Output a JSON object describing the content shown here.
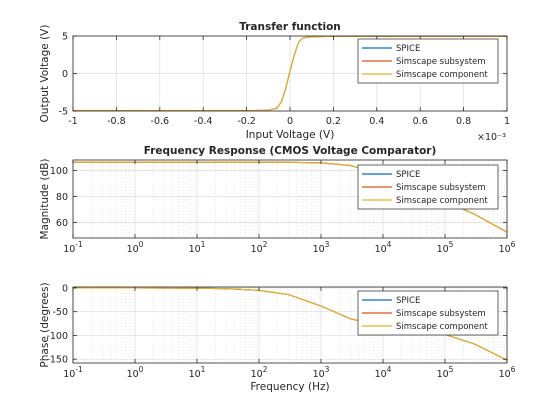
{
  "legend_labels": [
    "SPICE",
    "Simscape subsystem",
    "Simscape component"
  ],
  "colors": {
    "spice": "#0072BD",
    "subsystem": "#D95319",
    "component": "#EDB120",
    "grid": "#dcdcdc",
    "axis": "#262626"
  },
  "chart_data": [
    {
      "type": "line",
      "title": "Transfer function",
      "xlabel": "Input Voltage (V)",
      "ylabel": "Output Voltage (V)",
      "x_exponent_label": "×10⁻³",
      "xlim": [
        -1,
        1
      ],
      "ylim": [
        -5,
        5
      ],
      "xticks": [
        -1,
        -0.8,
        -0.6,
        -0.4,
        -0.2,
        0,
        0.2,
        0.4,
        0.6,
        0.8,
        1
      ],
      "xticklabels": [
        "-1",
        "-0.8",
        "-0.6",
        "-0.4",
        "-0.2",
        "0",
        "0.2",
        "0.4",
        "0.6",
        "0.8",
        "1"
      ],
      "yticks": [
        -5,
        0,
        5
      ],
      "yticklabels": [
        "-5",
        "0",
        "5"
      ],
      "xscale": "linear",
      "grid": true,
      "legend": "top-right",
      "series": [
        {
          "name": "SPICE",
          "x": [
            -1,
            -0.2,
            -0.1,
            -0.06,
            -0.04,
            -0.02,
            0,
            0.02,
            0.04,
            0.06,
            0.1,
            0.2,
            1
          ],
          "y": [
            -4.95,
            -4.95,
            -4.9,
            -4.6,
            -3.8,
            -2,
            0.3,
            2.5,
            4.2,
            4.75,
            4.9,
            4.95,
            4.95
          ]
        },
        {
          "name": "Simscape subsystem",
          "x": [
            -1,
            -0.2,
            -0.1,
            -0.06,
            -0.04,
            -0.02,
            0,
            0.02,
            0.04,
            0.06,
            0.1,
            0.2,
            1
          ],
          "y": [
            -4.95,
            -4.95,
            -4.9,
            -4.6,
            -3.8,
            -2,
            0.3,
            2.5,
            4.2,
            4.75,
            4.9,
            4.95,
            4.95
          ]
        },
        {
          "name": "Simscape component",
          "x": [
            -1,
            -0.2,
            -0.1,
            -0.06,
            -0.04,
            -0.02,
            0,
            0.02,
            0.04,
            0.06,
            0.1,
            0.2,
            1
          ],
          "y": [
            -4.95,
            -4.95,
            -4.9,
            -4.6,
            -3.8,
            -2,
            0.3,
            2.5,
            4.2,
            4.75,
            4.9,
            4.95,
            4.95
          ]
        }
      ]
    },
    {
      "type": "line",
      "title": "Frequency Response (CMOS Voltage Comparator)",
      "xlabel": "",
      "ylabel": "Magnitude (dB)",
      "xscale": "log",
      "xlim": [
        0.1,
        1000000
      ],
      "ylim": [
        48,
        108
      ],
      "xticks": [
        0.1,
        1,
        10,
        100,
        1000,
        10000,
        100000,
        1000000
      ],
      "xticklabels": [
        {
          "b": "10",
          "e": "-1"
        },
        {
          "b": "10",
          "e": "0"
        },
        {
          "b": "10",
          "e": "1"
        },
        {
          "b": "10",
          "e": "2"
        },
        {
          "b": "10",
          "e": "3"
        },
        {
          "b": "10",
          "e": "4"
        },
        {
          "b": "10",
          "e": "5"
        },
        {
          "b": "10",
          "e": "6"
        }
      ],
      "yticks": [
        60,
        80,
        100
      ],
      "yticklabels": [
        "60",
        "80",
        "100"
      ],
      "grid": true,
      "legend": "top-right",
      "series": [
        {
          "name": "SPICE",
          "x": [
            0.1,
            1,
            10,
            100,
            300,
            1000,
            3000,
            10000,
            30000,
            100000,
            300000,
            1000000
          ],
          "y": [
            106.3,
            106.3,
            106.3,
            106.3,
            106.2,
            105.8,
            103.7,
            96.7,
            86.8,
            76.3,
            66.3,
            52.5
          ]
        },
        {
          "name": "Simscape subsystem",
          "x": [
            0.1,
            1,
            10,
            100,
            300,
            1000,
            3000,
            10000,
            30000,
            100000,
            300000,
            1000000
          ],
          "y": [
            106.3,
            106.3,
            106.3,
            106.3,
            106.2,
            105.8,
            103.7,
            96.7,
            86.8,
            76.3,
            66.3,
            52.5
          ]
        },
        {
          "name": "Simscape component",
          "x": [
            0.1,
            1,
            10,
            100,
            300,
            1000,
            3000,
            10000,
            30000,
            100000,
            300000,
            1000000
          ],
          "y": [
            106.3,
            106.3,
            106.3,
            106.3,
            106.2,
            105.8,
            103.7,
            96.7,
            86.8,
            76.3,
            66.3,
            52.5
          ]
        }
      ]
    },
    {
      "type": "line",
      "title": "",
      "xlabel": "Frequency (Hz)",
      "ylabel": "Phase (degrees)",
      "xscale": "log",
      "xlim": [
        0.1,
        1000000
      ],
      "ylim": [
        -158,
        2
      ],
      "xticks": [
        0.1,
        1,
        10,
        100,
        1000,
        10000,
        100000,
        1000000
      ],
      "xticklabels": [
        {
          "b": "10",
          "e": "-1"
        },
        {
          "b": "10",
          "e": "0"
        },
        {
          "b": "10",
          "e": "1"
        },
        {
          "b": "10",
          "e": "2"
        },
        {
          "b": "10",
          "e": "3"
        },
        {
          "b": "10",
          "e": "4"
        },
        {
          "b": "10",
          "e": "5"
        },
        {
          "b": "10",
          "e": "6"
        }
      ],
      "yticks": [
        -150,
        -100,
        -50,
        0
      ],
      "yticklabels": [
        "-150",
        "-100",
        "-50",
        "0"
      ],
      "grid": true,
      "legend": "top-right",
      "series": [
        {
          "name": "SPICE",
          "x": [
            0.1,
            1,
            10,
            30,
            100,
            300,
            1000,
            3000,
            10000,
            30000,
            100000,
            300000,
            1000000
          ],
          "y": [
            0,
            -0.1,
            -0.5,
            -1.5,
            -5,
            -14,
            -38,
            -65,
            -81,
            -87,
            -98,
            -118,
            -152
          ]
        },
        {
          "name": "Simscape subsystem",
          "x": [
            0.1,
            1,
            10,
            30,
            100,
            300,
            1000,
            3000,
            10000,
            30000,
            100000,
            300000,
            1000000
          ],
          "y": [
            0,
            -0.1,
            -0.5,
            -1.5,
            -5,
            -14,
            -38,
            -65,
            -81,
            -87,
            -98,
            -118,
            -152
          ]
        },
        {
          "name": "Simscape component",
          "x": [
            0.1,
            1,
            10,
            30,
            100,
            300,
            1000,
            3000,
            10000,
            30000,
            100000,
            300000,
            1000000
          ],
          "y": [
            0,
            -0.1,
            -0.5,
            -1.5,
            -5,
            -14,
            -38,
            -65,
            -81,
            -87,
            -98,
            -118,
            -152
          ]
        }
      ]
    }
  ]
}
